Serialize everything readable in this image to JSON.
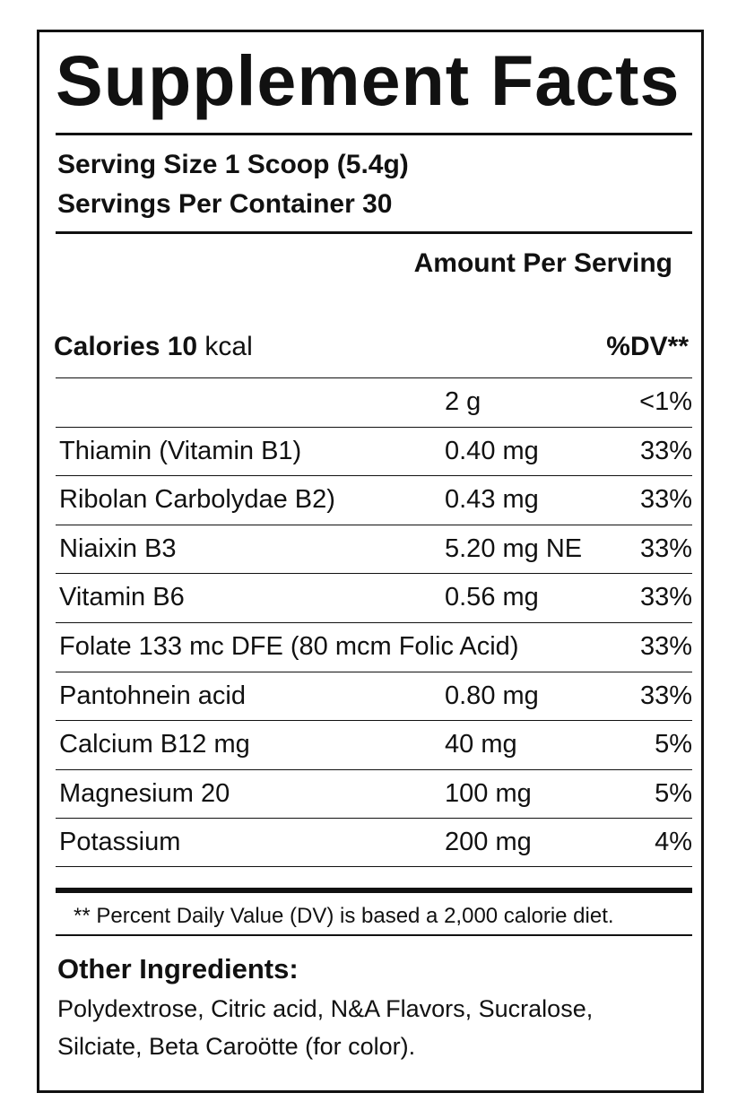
{
  "label": {
    "title": "Supplement Facts",
    "serving_size": "Serving Size 1 Scoop (5.4g)",
    "servings_per_container": "Servings Per Container 30",
    "amount_header": "Amount Per Serving",
    "calories_label": "Calories 10",
    "calories_unit": " kcal",
    "dv_header": "%DV**",
    "rows": [
      {
        "name": "",
        "amount": "2 g",
        "dv": "<1%"
      },
      {
        "name": "Thiamin (Vitamin B1)",
        "amount": "0.40 mg",
        "dv": "33%"
      },
      {
        "name": "Ribolan Carbolydae B2)",
        "amount": "0.43 mg",
        "dv": "33%"
      },
      {
        "name": "Niaixin B3",
        "amount": "5.20 mg NE",
        "dv": "33%"
      },
      {
        "name": "Vitamin B6",
        "amount": "0.56 mg",
        "dv": "33%"
      },
      {
        "name": "Folate 133 mc DFE (80 mcm Folic Acid)",
        "amount": "",
        "dv": "33%"
      },
      {
        "name": "Pantohnein acid",
        "amount": "0.80 mg",
        "dv": "33%"
      },
      {
        "name": "Calcium B12 mg",
        "amount": "40 mg",
        "dv": "5%"
      },
      {
        "name": "Magnesium 20",
        "amount": "100 mg",
        "dv": "5%"
      },
      {
        "name": "Potassium",
        "amount": "200 mg",
        "dv": "4%"
      }
    ],
    "footnote": "** Percent Daily Value (DV) is based a 2,000 calorie diet.",
    "other_ingredients_title": "Other Ingredients:",
    "other_ingredients_line1": "Polydextrose, Citric acid, N&A Flavors, Sucralose,",
    "other_ingredients_line2": "Silciate, Beta Caroötte (for color)."
  }
}
